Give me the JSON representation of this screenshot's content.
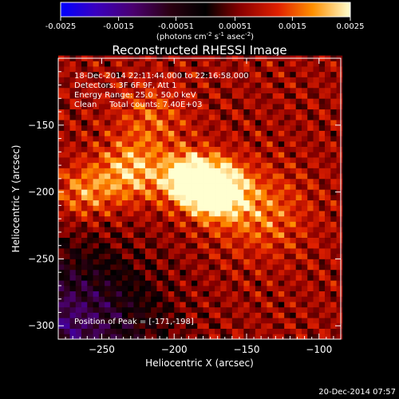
{
  "chart_data": {
    "type": "heatmap",
    "title": "Reconstructed RHESSI Image",
    "xlabel": "Heliocentric X (arcsec)",
    "ylabel": "Heliocentric Y (arcsec)",
    "xlim": [
      -280,
      -85
    ],
    "ylim": [
      -310,
      -100
    ],
    "x_ticks": [
      -250,
      -200,
      -150,
      -100
    ],
    "y_ticks": [
      -150,
      -200,
      -250,
      -300
    ],
    "colorbar": {
      "range": [
        -0.0025,
        0.0025
      ],
      "ticks": [
        "-0.0025",
        "-0.0015",
        "-0.00051",
        "0.00051",
        "0.0015",
        "0.0025"
      ],
      "unit_prefix": "(photons cm",
      "unit_exp1": "-2",
      "unit_mid1": " s",
      "unit_exp2": "-1",
      "unit_mid2": " asec",
      "unit_exp3": "-2",
      "unit_suffix": ")"
    },
    "annotations": [
      "18-Dec-2014 22:11:44.000 to 22:16:58.000",
      "Detectors: 3F 6F 9F, Att 1",
      "Energy Range: 25.0 - 50.0 keV",
      "Clean     Total counts: 7.40E+03"
    ],
    "peak_label": "Position of Peak = [-171,-198]",
    "peak": [
      -171,
      -198
    ],
    "sources": [
      {
        "x": -171,
        "y": -198,
        "sigma": 14,
        "amp": 0.0026
      },
      {
        "x": -190,
        "y": -190,
        "sigma": 13,
        "amp": 0.0021
      },
      {
        "x": -230,
        "y": -185,
        "sigma": 16,
        "amp": 0.0013
      },
      {
        "x": -262,
        "y": -200,
        "sigma": 14,
        "amp": 0.001
      },
      {
        "x": -140,
        "y": -215,
        "sigma": 22,
        "amp": 0.0009
      },
      {
        "x": -215,
        "y": -145,
        "sigma": 18,
        "amp": 0.0007
      }
    ]
  },
  "footer_date": "20-Dec-2014 07:57"
}
